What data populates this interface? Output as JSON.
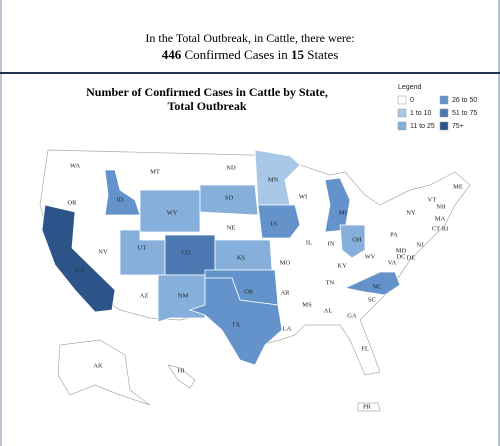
{
  "header": {
    "intro": "In the Total Outbreak, in Cattle, there were:",
    "cases": 446,
    "cases_text": " Confirmed Cases in ",
    "states": 15,
    "states_text": " States"
  },
  "map": {
    "title_line1": "Number of Confirmed Cases in Cattle by State,",
    "title_line2": "Total Outbreak",
    "legend_title": "Legend",
    "legend": [
      {
        "label": "0",
        "color": "#ffffff"
      },
      {
        "label": "1 to 10",
        "color": "#a9c8e8"
      },
      {
        "label": "11 to 25",
        "color": "#86afdc"
      },
      {
        "label": "26 to 50",
        "color": "#6493cb"
      },
      {
        "label": "51 to 75",
        "color": "#4c79b2"
      },
      {
        "label": "75+",
        "color": "#2c5488"
      }
    ],
    "states": [
      {
        "label": "CA",
        "color": "#2c5488"
      },
      {
        "label": "ID",
        "color": "#6493cb"
      },
      {
        "label": "WY",
        "color": "#86afdc"
      },
      {
        "label": "UT",
        "color": "#86afdc"
      },
      {
        "label": "CO",
        "color": "#4c79b2"
      },
      {
        "label": "NM",
        "color": "#86afdc"
      },
      {
        "label": "KS",
        "color": "#86afdc"
      },
      {
        "label": "OK",
        "color": "#6493cb"
      },
      {
        "label": "TX",
        "color": "#6493cb"
      },
      {
        "label": "SD",
        "color": "#86afdc"
      },
      {
        "label": "MN",
        "color": "#a9c8e8"
      },
      {
        "label": "IA",
        "color": "#6493cb"
      },
      {
        "label": "MI",
        "color": "#6493cb"
      },
      {
        "label": "OH",
        "color": "#86afdc"
      },
      {
        "label": "NC",
        "color": "#6493cb"
      },
      {
        "label": "WA",
        "color": "#ffffff"
      },
      {
        "label": "OR",
        "color": "#ffffff"
      },
      {
        "label": "NV",
        "color": "#ffffff"
      },
      {
        "label": "MT",
        "color": "#ffffff"
      },
      {
        "label": "AZ",
        "color": "#ffffff"
      },
      {
        "label": "ND",
        "color": "#ffffff"
      },
      {
        "label": "NE",
        "color": "#ffffff"
      },
      {
        "label": "MO",
        "color": "#ffffff"
      },
      {
        "label": "AR",
        "color": "#ffffff"
      },
      {
        "label": "LA",
        "color": "#ffffff"
      },
      {
        "label": "WI",
        "color": "#ffffff"
      },
      {
        "label": "IL",
        "color": "#ffffff"
      },
      {
        "label": "MS",
        "color": "#ffffff"
      },
      {
        "label": "IN",
        "color": "#ffffff"
      },
      {
        "label": "KY",
        "color": "#ffffff"
      },
      {
        "label": "TN",
        "color": "#ffffff"
      },
      {
        "label": "AL",
        "color": "#ffffff"
      },
      {
        "label": "GA",
        "color": "#ffffff"
      },
      {
        "label": "FL",
        "color": "#ffffff"
      },
      {
        "label": "SC",
        "color": "#ffffff"
      },
      {
        "label": "VA",
        "color": "#ffffff"
      },
      {
        "label": "WV",
        "color": "#ffffff"
      },
      {
        "label": "PA",
        "color": "#ffffff"
      },
      {
        "label": "NY",
        "color": "#ffffff"
      },
      {
        "label": "VT",
        "color": "#ffffff"
      },
      {
        "label": "NH",
        "color": "#ffffff"
      },
      {
        "label": "ME",
        "color": "#ffffff"
      },
      {
        "label": "MA",
        "color": "#ffffff"
      },
      {
        "label": "CT",
        "color": "#ffffff"
      },
      {
        "label": "RI",
        "color": "#ffffff"
      },
      {
        "label": "NJ",
        "color": "#ffffff"
      },
      {
        "label": "DE",
        "color": "#ffffff"
      },
      {
        "label": "MD",
        "color": "#ffffff"
      },
      {
        "label": "DC",
        "color": "#ffffff"
      },
      {
        "label": "AK",
        "color": "#ffffff"
      },
      {
        "label": "HI",
        "color": "#ffffff"
      },
      {
        "label": "PR",
        "color": "#ffffff"
      }
    ]
  }
}
